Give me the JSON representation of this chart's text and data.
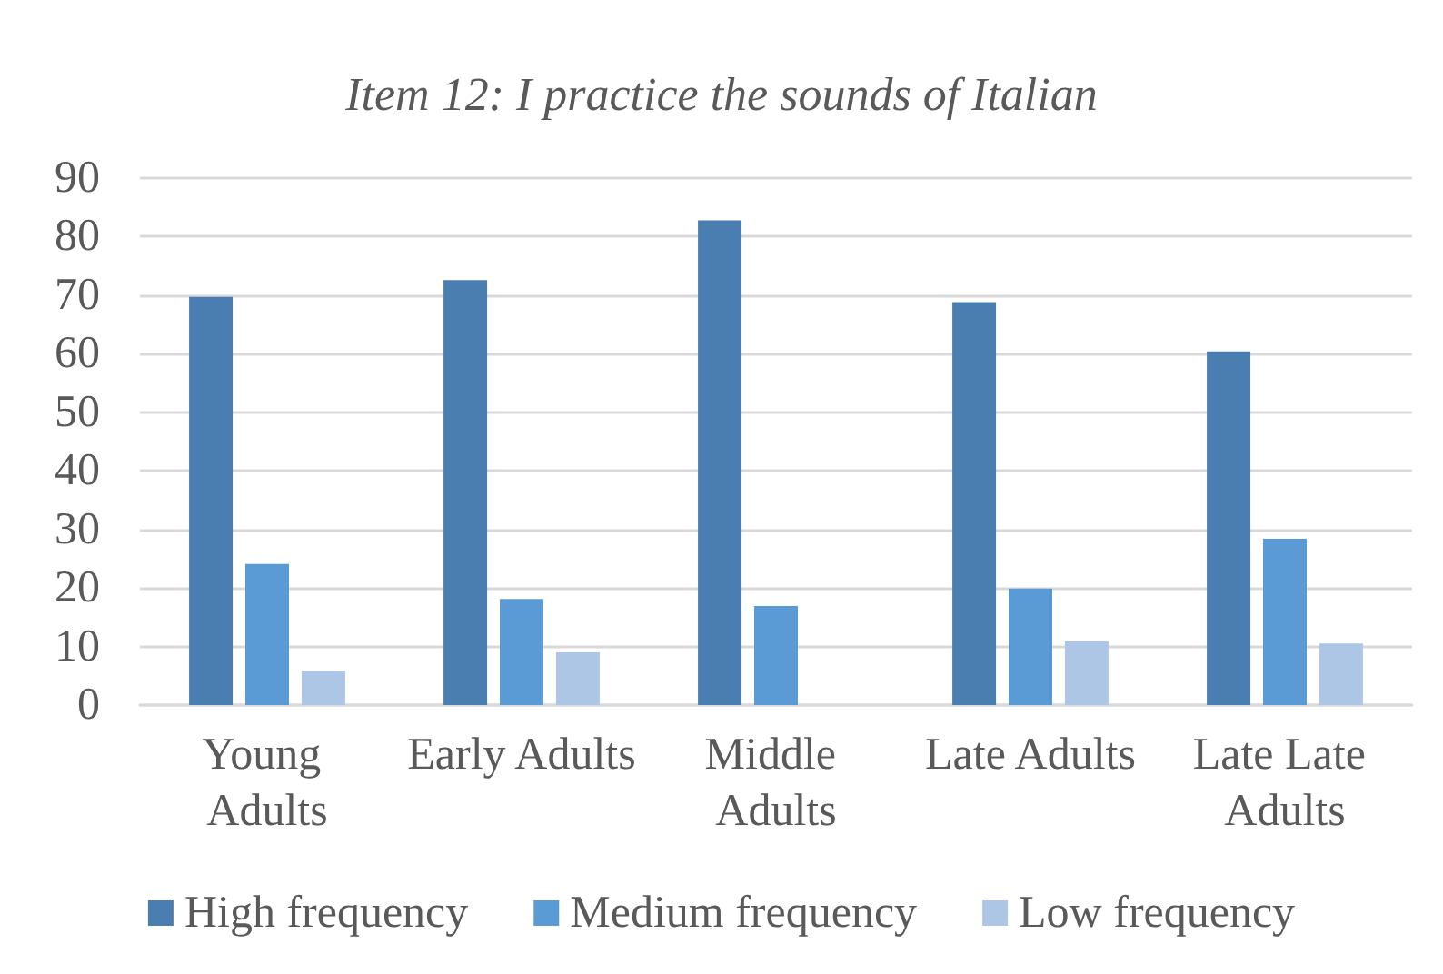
{
  "chart_data": {
    "type": "bar",
    "title": "Item 12: I practice the sounds of Italian",
    "categories": [
      "Young Adults",
      "Early Adults",
      "Middle Adults",
      "Late Adults",
      "Late Late Adults"
    ],
    "series": [
      {
        "name": "High frequency",
        "color": "#4a7eb0",
        "values": [
          69.7,
          72.6,
          82.8,
          68.8,
          60.4
        ]
      },
      {
        "name": "Medium frequency",
        "color": "#5b9bd5",
        "values": [
          24.1,
          18.1,
          16.9,
          19.9,
          28.4
        ]
      },
      {
        "name": "Low frequency",
        "color": "#adc6e6",
        "values": [
          5.9,
          9.0,
          0,
          10.9,
          10.5
        ]
      }
    ],
    "ylim": [
      0,
      90
    ],
    "yticks": [
      0,
      10,
      20,
      30,
      40,
      50,
      60,
      70,
      80,
      90
    ],
    "grid": "y",
    "legend": "bottom"
  }
}
